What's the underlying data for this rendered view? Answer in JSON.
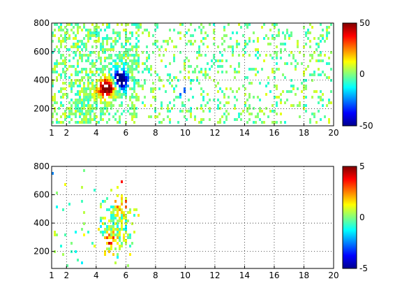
{
  "chart_data": [
    {
      "type": "heatmap",
      "title": "",
      "xlabel": "",
      "ylabel": "",
      "xlim": [
        1,
        20
      ],
      "ylim": [
        80,
        800
      ],
      "xticks": [
        1,
        2,
        4,
        6,
        8,
        10,
        12,
        14,
        16,
        18,
        20
      ],
      "yticks": [
        200,
        400,
        600,
        800
      ],
      "grid": true,
      "colormap": "jet",
      "clim": [
        -50,
        50
      ],
      "colorbar_ticks": [
        -50,
        0,
        50
      ],
      "features": [
        {
          "x": 4.6,
          "y": 330,
          "value": 45
        },
        {
          "x": 5.0,
          "y": 360,
          "value": 35
        },
        {
          "x": 5.5,
          "y": 420,
          "value": -40
        },
        {
          "x": 5.7,
          "y": 380,
          "value": -45
        },
        {
          "x": 10.0,
          "y": 300,
          "value": -30
        }
      ]
    },
    {
      "type": "heatmap",
      "title": "",
      "xlabel": "",
      "ylabel": "",
      "xlim": [
        1,
        20
      ],
      "ylim": [
        80,
        800
      ],
      "xticks": [
        1,
        2,
        4,
        6,
        8,
        10,
        12,
        14,
        16,
        18,
        20
      ],
      "yticks": [
        200,
        400,
        600,
        800
      ],
      "grid": true,
      "colormap": "jet",
      "clim": [
        -5,
        5
      ],
      "colorbar_ticks": [
        -5,
        0,
        5
      ],
      "features": [
        {
          "x": 5.6,
          "y": 700,
          "value": 4
        },
        {
          "x": 5.8,
          "y": 520,
          "value": 3
        },
        {
          "x": 5.0,
          "y": 260,
          "value": 3
        },
        {
          "x": 1.4,
          "y": 760,
          "value": -4
        }
      ]
    }
  ],
  "panels": [
    {
      "x_tick_labels": [
        "1",
        "2",
        "4",
        "6",
        "8",
        "10",
        "12",
        "14",
        "16",
        "18",
        "20"
      ],
      "y_tick_labels": [
        "200",
        "400",
        "600",
        "800"
      ],
      "colorbar_labels": [
        "50",
        "0",
        "-50"
      ]
    },
    {
      "x_tick_labels": [
        "1",
        "2",
        "4",
        "6",
        "8",
        "10",
        "12",
        "14",
        "16",
        "18",
        "20"
      ],
      "y_tick_labels": [
        "200",
        "400",
        "600",
        "800"
      ],
      "colorbar_labels": [
        "5",
        "0",
        "-5"
      ]
    }
  ]
}
